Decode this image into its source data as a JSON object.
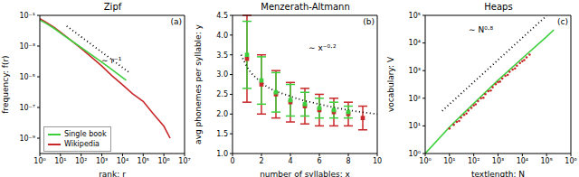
{
  "chart_data": [
    {
      "type": "line",
      "title": "Zipf",
      "x_label": "rank: r",
      "y_label": "frequency: f(r)",
      "panel_label": "(a)",
      "log": true,
      "legend": "lower left",
      "xlim": [
        1,
        10000000
      ],
      "xticks": [
        {
          "value": 1,
          "label": "10⁰"
        },
        {
          "value": 10,
          "label": "10¹"
        },
        {
          "value": 100,
          "label": "10²"
        },
        {
          "value": 1000,
          "label": "10³"
        },
        {
          "value": 10000,
          "label": "10⁴"
        },
        {
          "value": 100000,
          "label": "10⁵"
        },
        {
          "value": 1000000,
          "label": "10⁶"
        },
        {
          "value": 10000000,
          "label": "10⁷"
        }
      ],
      "ylim": [
        1e-10,
        0.1
      ],
      "yticks": [
        {
          "value": 0.1,
          "label": "10⁻¹"
        },
        {
          "value": 0.001,
          "label": "10⁻³"
        },
        {
          "value": 1e-05,
          "label": "10⁻⁵"
        },
        {
          "value": 1e-07,
          "label": "10⁻⁷"
        },
        {
          "value": 1e-09,
          "label": "10⁻⁹"
        }
      ],
      "series": [
        {
          "name": "Single book",
          "color": "#3ccf3c",
          "type": "line",
          "line_style": "solid",
          "x": [
            1,
            2,
            5,
            10,
            30,
            100,
            300,
            1000,
            3000,
            10000,
            15000
          ],
          "values": [
            0.05,
            0.03,
            0.014,
            0.007,
            0.0025,
            0.0008,
            0.00028,
            9e-05,
            3e-05,
            9e-06,
            6e-06
          ]
        },
        {
          "name": "Wikipedia",
          "color": "#c8282a",
          "type": "line",
          "line_style": "solid",
          "x": [
            1,
            2,
            5,
            10,
            30,
            100,
            300,
            1000,
            3000,
            10000,
            30000,
            100000,
            300000,
            1000000,
            2000000
          ],
          "values": [
            0.06,
            0.035,
            0.016,
            0.008,
            0.0025,
            0.0007,
            0.0002,
            5e-05,
            1.2e-05,
            3e-06,
            8e-07,
            2.5e-07,
            4e-08,
            6e-09,
            1e-09
          ]
        }
      ],
      "fit": {
        "label": "∼ r⁻¹",
        "color": "#000000",
        "line_style": "dotted",
        "x": [
          20,
          20000
        ],
        "values": [
          0.02,
          2e-05
        ]
      }
    },
    {
      "type": "scatter",
      "title": "Menzerath-Altmann",
      "x_label": "number of syllables: x",
      "y_label": "avg phonemes per syllable: y",
      "panel_label": "(b)",
      "xlim": [
        0,
        10
      ],
      "xticks": [
        0,
        2,
        4,
        6,
        8,
        10
      ],
      "ylim": [
        1,
        4.5
      ],
      "yticks": [
        {
          "value": 1,
          "label": "1.0"
        },
        1.5,
        {
          "value": 2,
          "label": "2.0"
        },
        2.5,
        {
          "value": 3,
          "label": "3.0"
        },
        3.5,
        {
          "value": 4,
          "label": "4.0"
        },
        4.5
      ],
      "series": [
        {
          "color": "#3ccf3c",
          "type": "scatter",
          "marker": "square",
          "x": [
            1,
            2,
            3,
            4,
            5,
            6,
            7,
            8
          ],
          "values": [
            3.5,
            2.85,
            2.55,
            2.35,
            2.25,
            2.15,
            2.1,
            2.05
          ],
          "errors": [
            0.85,
            0.6,
            0.5,
            0.4,
            0.3,
            0.25,
            0.2,
            0.15
          ]
        },
        {
          "color": "#c8282a",
          "type": "scatter",
          "marker": "square",
          "x": [
            1,
            2,
            3,
            4,
            5,
            6,
            7,
            8,
            9
          ],
          "values": [
            3.4,
            2.75,
            2.5,
            2.3,
            2.2,
            2.1,
            2.05,
            2.0,
            1.9
          ],
          "errors": [
            1.1,
            0.75,
            0.6,
            0.5,
            0.45,
            0.4,
            0.35,
            0.3,
            0.3
          ]
        }
      ],
      "fit": {
        "label": "∼ x⁻⁰·²",
        "color": "#000000",
        "line_style": "dotted",
        "x": [
          0.6,
          1,
          2,
          4,
          6,
          8,
          10
        ],
        "values": [
          3.5,
          3.2,
          2.8,
          2.45,
          2.25,
          2.1,
          2.0
        ]
      }
    },
    {
      "type": "scatter",
      "title": "Heaps",
      "x_label": "textlength: N",
      "y_label": "vocabulary: V",
      "panel_label": "(c)",
      "log": true,
      "xlim": [
        1,
        1000000
      ],
      "xticks": [
        {
          "value": 1,
          "label": "10⁰"
        },
        {
          "value": 10,
          "label": "10¹"
        },
        {
          "value": 100,
          "label": "10²"
        },
        {
          "value": 1000,
          "label": "10³"
        },
        {
          "value": 10000,
          "label": "10⁴"
        },
        {
          "value": 100000,
          "label": "10⁵"
        },
        {
          "value": 1000000,
          "label": "10⁶"
        }
      ],
      "ylim": [
        1,
        100000
      ],
      "yticks": [
        {
          "value": 1,
          "label": "10⁰"
        },
        {
          "value": 10,
          "label": "10¹"
        },
        {
          "value": 100,
          "label": "10²"
        },
        {
          "value": 1000,
          "label": "10³"
        },
        {
          "value": 10000,
          "label": "10⁴"
        },
        {
          "value": 100000,
          "label": "10⁵"
        }
      ],
      "series": [
        {
          "color": "#3ccf3c",
          "type": "line",
          "line_style": "solid",
          "x": [
            1,
            10,
            100,
            1000,
            10000,
            100000,
            200000
          ],
          "values": [
            1,
            9,
            65,
            450,
            2800,
            17000,
            30000
          ]
        },
        {
          "color": "#c8282a",
          "type": "scatter",
          "marker": "point",
          "x": [
            10,
            15,
            20,
            30,
            40,
            60,
            80,
            100,
            150,
            200,
            300,
            400,
            600,
            800,
            1000,
            1500,
            2000,
            3000,
            4000,
            6000,
            8000,
            10000,
            15000,
            20000,
            25,
            50,
            120,
            250,
            500,
            1200,
            2500,
            5000,
            12000
          ],
          "values": [
            8,
            11,
            14,
            20,
            25,
            36,
            45,
            55,
            78,
            100,
            140,
            180,
            250,
            320,
            380,
            520,
            650,
            900,
            1100,
            1500,
            1900,
            2200,
            3000,
            3800,
            15,
            28,
            60,
            105,
            190,
            400,
            700,
            1200,
            2400
          ]
        }
      ],
      "fit": {
        "label": "∼ N⁰·⁸",
        "color": "#000000",
        "line_style": "dotted",
        "x": [
          5,
          100000
        ],
        "values": [
          35,
          97000
        ]
      }
    }
  ]
}
